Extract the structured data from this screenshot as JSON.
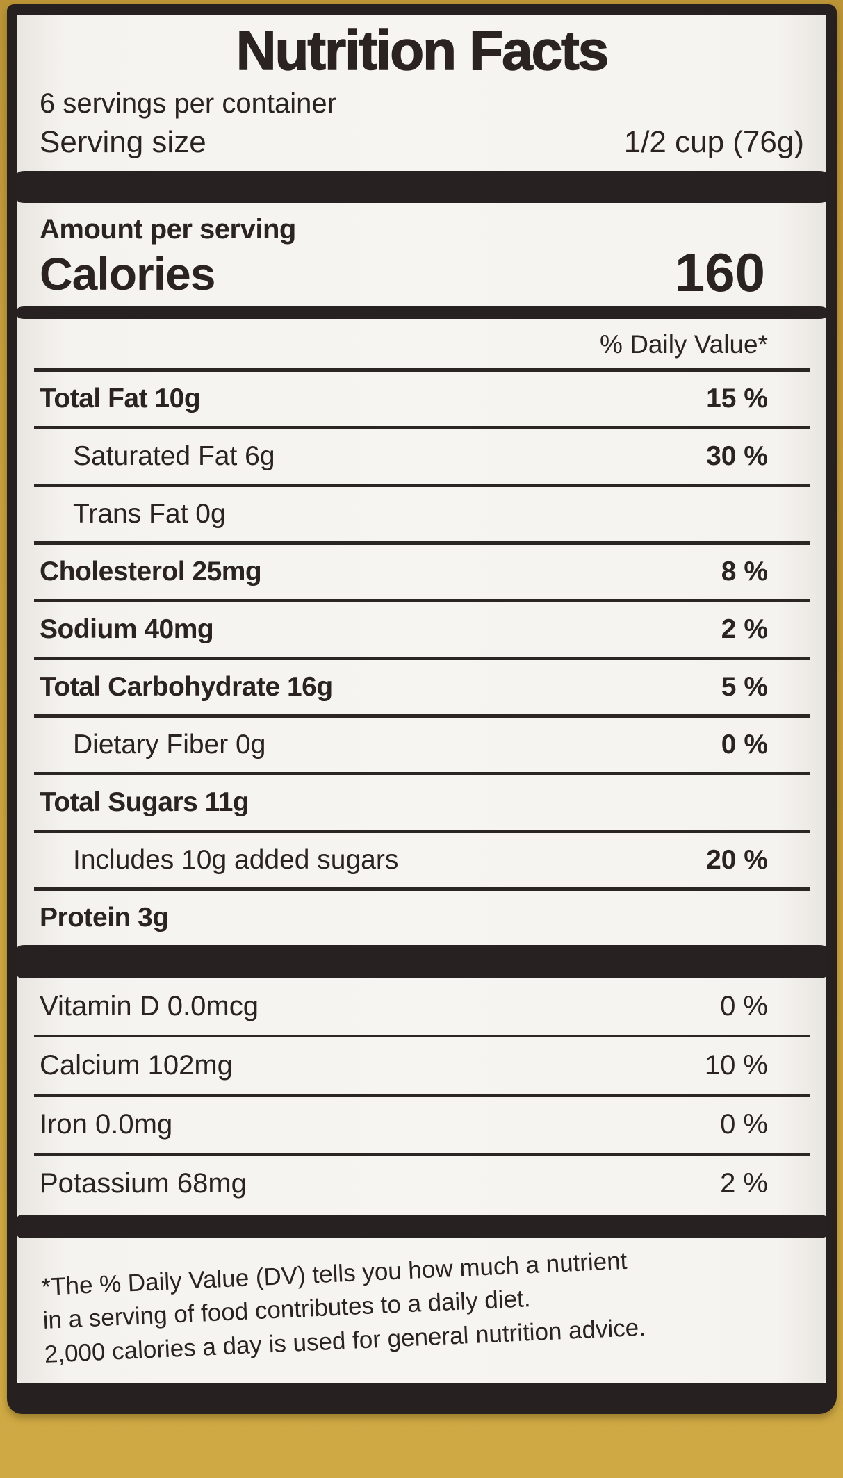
{
  "colors": {
    "background_tan": "#c59e3d",
    "label_paper": "#f4f2ee",
    "ink": "#262120"
  },
  "label": {
    "title": "Nutrition Facts",
    "servings_per_container": "6 servings per container",
    "serving_size": {
      "label": "Serving size",
      "value": "1/2 cup (76g)"
    },
    "amount_per_serving": "Amount per serving",
    "calories": {
      "label": "Calories",
      "value": "160"
    },
    "daily_value_header": "% Daily Value*",
    "nutrients": [
      {
        "name": "Total Fat 10g",
        "daily_value": "15 %"
      },
      {
        "name": "Saturated Fat 6g",
        "daily_value": "30 %"
      },
      {
        "name": "Trans Fat 0g",
        "daily_value": ""
      },
      {
        "name": "Cholesterol 25mg",
        "daily_value": "8 %"
      },
      {
        "name": "Sodium 40mg",
        "daily_value": "2 %"
      },
      {
        "name": "Total Carbohydrate 16g",
        "daily_value": "5 %"
      },
      {
        "name": "Dietary Fiber 0g",
        "daily_value": "0 %"
      },
      {
        "name": "Total Sugars 11g",
        "daily_value": ""
      },
      {
        "name": "Includes 10g added sugars",
        "daily_value": "20 %"
      },
      {
        "name": "Protein 3g",
        "daily_value": ""
      }
    ],
    "micronutrients": [
      {
        "name": "Vitamin D 0.0mcg",
        "daily_value": "0 %"
      },
      {
        "name": "Calcium 102mg",
        "daily_value": "10 %"
      },
      {
        "name": "Iron 0.0mg",
        "daily_value": "0 %"
      },
      {
        "name": "Potassium 68mg",
        "daily_value": "2 %"
      }
    ],
    "footnote_lines": [
      "*The % Daily Value (DV) tells you how much a nutrient",
      "in a serving of food contributes to a daily diet.",
      "2,000 calories a day is used for general nutrition advice."
    ]
  }
}
